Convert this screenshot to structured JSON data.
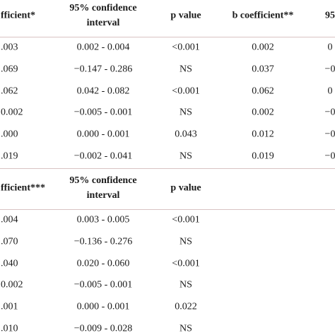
{
  "tables": [
    {
      "header": [
        "fficient*",
        "95% confidence interval",
        "p value",
        "b coefficient**",
        "95"
      ],
      "rows": [
        [
          ".003",
          "0.002 - 0.004",
          "<0.001",
          "0.002",
          "0"
        ],
        [
          ".069",
          "−0.147 - 0.286",
          "NS",
          "0.037",
          "−0"
        ],
        [
          ".062",
          "0.042 - 0.082",
          "<0.001",
          "0.062",
          "0"
        ],
        [
          "0.002",
          "−0.005 - 0.001",
          "NS",
          "0.002",
          "−0"
        ],
        [
          ".000",
          "0.000 - 0.001",
          "0.043",
          "0.012",
          "−0"
        ],
        [
          ".019",
          "−0.002 - 0.041",
          "NS",
          "0.019",
          "−0"
        ]
      ]
    },
    {
      "header": [
        "fficient***",
        "95% confidence interval",
        "p value"
      ],
      "rows": [
        [
          ".004",
          "0.003 - 0.005",
          "<0.001"
        ],
        [
          ".070",
          "−0.136 - 0.276",
          "NS"
        ],
        [
          ".040",
          "0.020 - 0.060",
          "<0.001"
        ],
        [
          "0.002",
          "−0.005 - 0.001",
          "NS"
        ],
        [
          ".001",
          "0.000 - 0.001",
          "0.022"
        ],
        [
          ".010",
          "−0.009 - 0.028",
          "NS"
        ]
      ]
    }
  ]
}
